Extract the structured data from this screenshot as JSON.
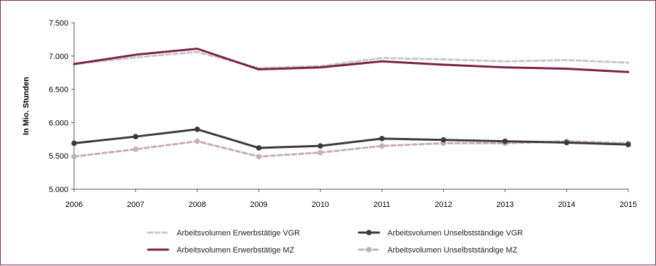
{
  "chart_data": {
    "type": "line",
    "title": "",
    "xlabel": "",
    "ylabel": "In Mio. Stunden",
    "x": [
      "2006",
      "2007",
      "2008",
      "2009",
      "2010",
      "2011",
      "2012",
      "2013",
      "2014",
      "2015"
    ],
    "ylim": [
      5000,
      7500
    ],
    "yticks": [
      5000,
      5500,
      6000,
      6500,
      7000,
      7500
    ],
    "ytick_labels": [
      "5.000",
      "5.500",
      "6.000",
      "6.500",
      "7.000",
      "7.500"
    ],
    "grid": false,
    "legend_position": "bottom",
    "series": [
      {
        "name": "Arbeitsvolumen Erwerbstätige VGR",
        "color": "#c8c8c8",
        "style": "dashed",
        "markers": false,
        "values": [
          6880,
          6980,
          7060,
          6820,
          6850,
          6970,
          6950,
          6920,
          6940,
          6900
        ]
      },
      {
        "name": "Arbeitsvolumen Erwerbstätige MZ",
        "color": "#7b2346",
        "style": "solid",
        "markers": false,
        "values": [
          6880,
          7020,
          7110,
          6800,
          6830,
          6920,
          6870,
          6830,
          6810,
          6760
        ]
      },
      {
        "name": "Arbeitsvolumen Unselbstständige VGR",
        "color": "#3a3a3a",
        "style": "solid",
        "markers": true,
        "values": [
          5690,
          5790,
          5900,
          5620,
          5650,
          5760,
          5740,
          5720,
          5700,
          5670
        ]
      },
      {
        "name": "Arbeitsvolumen Unselbstständige MZ",
        "color": "#c9adb5",
        "style": "dashed",
        "markers": true,
        "values": [
          5490,
          5600,
          5720,
          5490,
          5550,
          5650,
          5690,
          5690,
          5720,
          5690
        ]
      }
    ]
  }
}
